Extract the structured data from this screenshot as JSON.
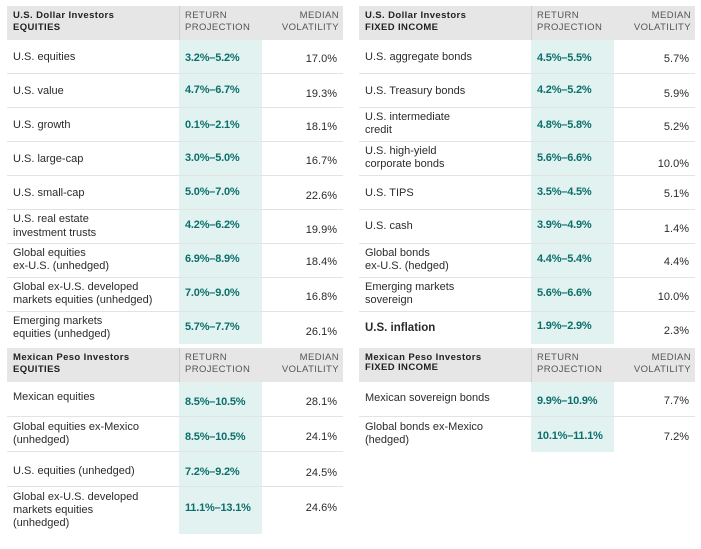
{
  "usd_equities": {
    "title1": "U.S. Dollar Investors",
    "title2": "EQUITIES",
    "col_return_1": "RETURN",
    "col_return_2": "PROJECTION",
    "col_vol_1": "MEDIAN",
    "col_vol_2": "VOLATILITY",
    "rows": [
      {
        "label1": "U.S. equities",
        "label2": "",
        "projection": "3.2%–5.2%",
        "volatility": "17.0%"
      },
      {
        "label1": "U.S. value",
        "label2": "",
        "projection": "4.7%–6.7%",
        "volatility": "19.3%"
      },
      {
        "label1": "U.S. growth",
        "label2": "",
        "projection": "0.1%–2.1%",
        "volatility": "18.1%"
      },
      {
        "label1": "U.S. large-cap",
        "label2": "",
        "projection": "3.0%–5.0%",
        "volatility": "16.7%"
      },
      {
        "label1": "U.S. small-cap",
        "label2": "",
        "projection": "5.0%–7.0%",
        "volatility": "22.6%"
      },
      {
        "label1": "U.S. real estate",
        "label2": "investment trusts",
        "projection": "4.2%–6.2%",
        "volatility": "19.9%"
      },
      {
        "label1": "Global equities",
        "label2": "ex-U.S. (unhedged)",
        "projection": "6.9%–8.9%",
        "volatility": "18.4%"
      },
      {
        "label1": "Global ex-U.S. developed",
        "label2": "markets equities (unhedged)",
        "projection": "7.0%–9.0%",
        "volatility": "16.8%"
      },
      {
        "label1": "Emerging markets",
        "label2": "equities (unhedged)",
        "projection": "5.7%–7.7%",
        "volatility": "26.1%"
      }
    ]
  },
  "usd_fixed": {
    "title1": "U.S. Dollar Investors",
    "title2": "FIXED INCOME",
    "col_return_1": "RETURN",
    "col_return_2": "PROJECTION",
    "col_vol_1": "MEDIAN",
    "col_vol_2": "VOLATILITY",
    "rows": [
      {
        "label1": "U.S. aggregate bonds",
        "label2": "",
        "projection": "4.5%–5.5%",
        "volatility": "5.7%"
      },
      {
        "label1": "U.S. Treasury bonds",
        "label2": "",
        "projection": "4.2%–5.2%",
        "volatility": "5.9%"
      },
      {
        "label1": "U.S. intermediate",
        "label2": "credit",
        "projection": "4.8%–5.8%",
        "volatility": "5.2%"
      },
      {
        "label1": "U.S. high-yield",
        "label2": "corporate bonds",
        "projection": "5.6%–6.6%",
        "volatility": "10.0%"
      },
      {
        "label1": "U.S. TIPS",
        "label2": "",
        "projection": "3.5%–4.5%",
        "volatility": "5.1%"
      },
      {
        "label1": "U.S. cash",
        "label2": "",
        "projection": "3.9%–4.9%",
        "volatility": "1.4%"
      },
      {
        "label1": "Global bonds",
        "label2": "ex-U.S. (hedged)",
        "projection": "4.4%–5.4%",
        "volatility": "4.4%"
      },
      {
        "label1": "Emerging markets",
        "label2": "sovereign",
        "projection": "5.6%–6.6%",
        "volatility": "10.0%"
      },
      {
        "label1": "U.S. inflation",
        "label2": "",
        "projection": "1.9%–2.9%",
        "volatility": "2.3%"
      }
    ]
  },
  "mxn_equities": {
    "title1": "Mexican Peso Investors",
    "title2": "EQUITIES",
    "col_return_1": "RETURN",
    "col_return_2": "PROJECTION",
    "col_vol_1": "MEDIAN",
    "col_vol_2": "VOLATILITY",
    "rows": [
      {
        "label1": "Mexican equities",
        "label2": "",
        "label3": "",
        "projection": "8.5%–10.5%",
        "volatility": "28.1%"
      },
      {
        "label1": "Global equities ex-Mexico",
        "label2": "(unhedged)",
        "label3": "",
        "projection": "8.5%–10.5%",
        "volatility": "24.1%"
      },
      {
        "label1": "U.S. equities (unhedged)",
        "label2": "",
        "label3": "",
        "projection": "7.2%–9.2%",
        "volatility": "24.5%"
      },
      {
        "label1": "Global ex-U.S. developed",
        "label2": "markets equities",
        "label3": "(unhedged)",
        "projection": "11.1%–13.1%",
        "volatility": "24.6%"
      }
    ]
  },
  "mxn_fixed": {
    "title1": "Mexican Peso Investors",
    "title2": "FIXED INCOME",
    "col_return_1": "RETURN",
    "col_return_2": "PROJECTION",
    "col_vol_1": "MEDIAN",
    "col_vol_2": "VOLATILITY",
    "rows": [
      {
        "label1": "Mexican sovereign bonds",
        "label2": "",
        "projection": "9.9%–10.9%",
        "volatility": "7.7%"
      },
      {
        "label1": "Global bonds ex-Mexico",
        "label2": "(hedged)",
        "projection": "10.1%–11.1%",
        "volatility": "7.2%"
      }
    ]
  }
}
